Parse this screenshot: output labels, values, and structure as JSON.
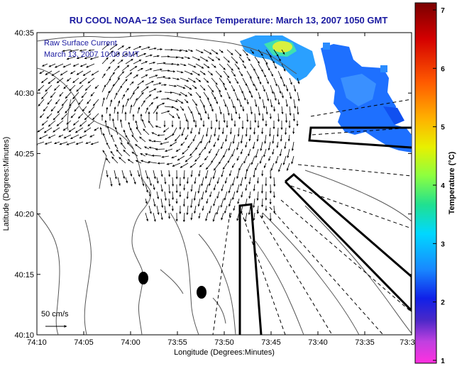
{
  "title": "RU COOL  NOAA−12  Sea Surface Temperature:  March 13, 2007 1050 GMT",
  "overlay": {
    "line1": "Raw Surface Current",
    "line2": "March 13, 2007 10:00 GMT"
  },
  "scale_label": "50 cm/s",
  "axes": {
    "xlabel": "Longitude (Degrees:Minutes)",
    "ylabel": "Latitude (Degrees:Minutes)",
    "x_ticks": [
      "74:10",
      "74:05",
      "74:00",
      "73:55",
      "73:50",
      "73:45",
      "73:40",
      "73:35",
      "73:3"
    ],
    "y_ticks": [
      "40:35",
      "40:30",
      "40:25",
      "40:20",
      "40:15",
      "40:10"
    ]
  },
  "colorbar": {
    "label": "Temperature (°C)",
    "ticks": [
      "7",
      "6",
      "5",
      "4",
      "3",
      "2",
      "1"
    ],
    "range": [
      1,
      7
    ]
  },
  "colors": {
    "title": "#1a1aa0",
    "overlay_text": "#1a1aa0",
    "coast": "#555555",
    "vectors": "#000000"
  }
}
